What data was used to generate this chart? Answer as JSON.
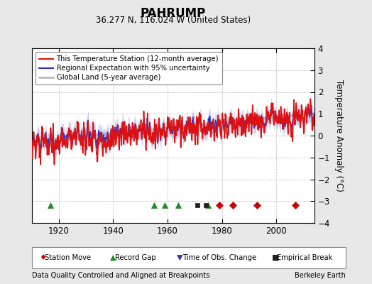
{
  "title": "PAHRUMP",
  "subtitle": "36.277 N, 116.024 W (United States)",
  "footer_left": "Data Quality Controlled and Aligned at Breakpoints",
  "footer_right": "Berkeley Earth",
  "ylabel": "Temperature Anomaly (°C)",
  "ylim": [
    -4,
    4
  ],
  "xlim": [
    1910,
    2014
  ],
  "xticks": [
    1920,
    1940,
    1960,
    1980,
    2000
  ],
  "yticks": [
    -4,
    -3,
    -2,
    -1,
    0,
    1,
    2,
    3,
    4
  ],
  "background_color": "#e8e8e8",
  "plot_bg_color": "#ffffff",
  "legend_items": [
    {
      "label": "This Temperature Station (12-month average)",
      "color": "#dd1111",
      "lw": 1.2
    },
    {
      "label": "Regional Expectation with 95% uncertainty",
      "color": "#3333bb",
      "lw": 1.0
    },
    {
      "label": "Global Land (5-year average)",
      "color": "#bbbbbb",
      "lw": 2.5
    }
  ],
  "uncertainty_color": "#aaaadd",
  "uncertainty_alpha": 0.6,
  "markers": {
    "station_move": {
      "years": [
        1979,
        1984,
        1993,
        2007
      ],
      "color": "#cc0000",
      "marker": "D",
      "size": 5
    },
    "record_gap": {
      "years": [
        1917,
        1955,
        1959,
        1964,
        1975
      ],
      "color": "#228B22",
      "marker": "^",
      "size": 6
    },
    "time_obs_change": {
      "years": [],
      "color": "#3333bb",
      "marker": "v",
      "size": 6
    },
    "empirical_break": {
      "years": [
        1971,
        1974
      ],
      "color": "#222222",
      "marker": "s",
      "size": 5
    }
  },
  "marker_y": -3.2,
  "seed": 42
}
